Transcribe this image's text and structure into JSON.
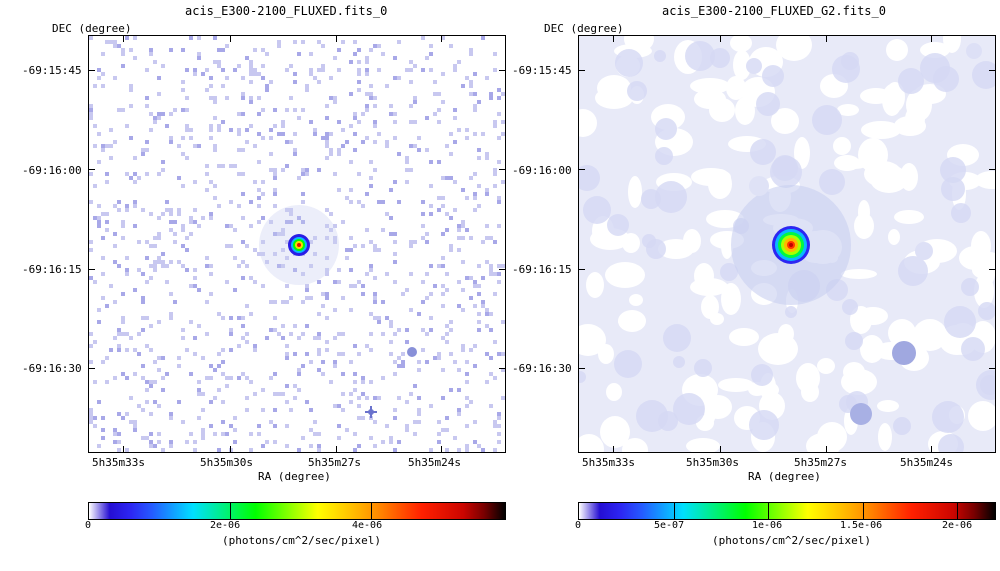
{
  "panels": [
    {
      "title": "acis_E300-2100_FLUXED.fits_0",
      "dec_label": "DEC (degree)",
      "ra_label": "RA (degree)",
      "dec_ticks": [
        "-69:15:45",
        "-69:16:00",
        "-69:16:15",
        "-69:16:30"
      ],
      "ra_ticks": [
        "5h35m33s",
        "5h35m30s",
        "5h35m27s",
        "5h35m24s"
      ],
      "colorbar": {
        "ticks": [
          "0",
          "2e-06",
          "4e-06"
        ],
        "units": "(photons/cm^2/sec/pixel)",
        "tick_values": [
          0,
          2e-06,
          4e-06
        ],
        "max_value": 5.9e-06,
        "colormap": "rainbow"
      },
      "smoothing": "none"
    },
    {
      "title": "acis_E300-2100_FLUXED_G2.fits_0",
      "dec_label": "DEC (degree)",
      "ra_label": "RA (degree)",
      "dec_ticks": [
        "-69:15:45",
        "-69:16:00",
        "-69:16:15",
        "-69:16:30"
      ],
      "ra_ticks": [
        "5h35m33s",
        "5h35m30s",
        "5h35m27s",
        "5h35m24s"
      ],
      "colorbar": {
        "ticks": [
          "0",
          "5e-07",
          "1e-06",
          "1.5e-06",
          "2e-06"
        ],
        "units": "(photons/cm^2/sec/pixel)",
        "tick_values": [
          0,
          5e-07,
          1e-06,
          1.5e-06,
          2e-06
        ],
        "max_value": 2.2e-06,
        "colormap": "rainbow"
      },
      "smoothing": "gaussian"
    }
  ],
  "colors": {
    "background": "#ffffff",
    "faint_pixel": "#c8c8f0",
    "smooth_bg": "#e8eaf8"
  }
}
